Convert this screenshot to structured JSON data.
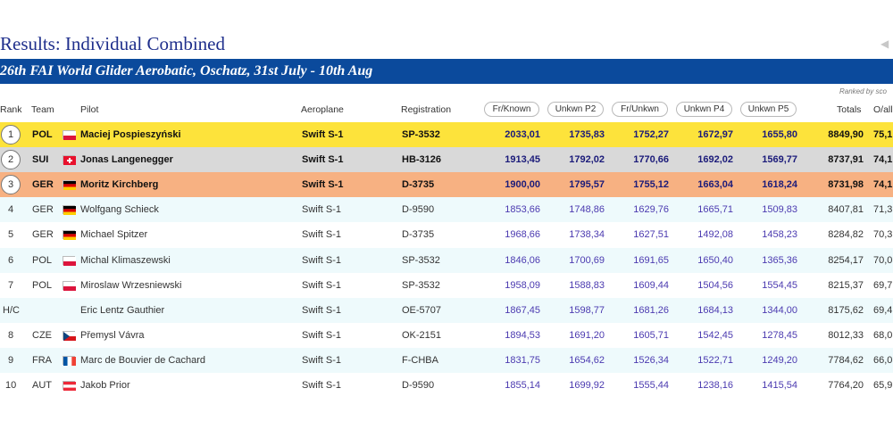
{
  "page": {
    "title": "Results: Individual Combined",
    "banner": "26th FAI World Glider Aerobatic, Oschatz, 31st July - 10th Aug",
    "ranked_by": "Ranked by sco"
  },
  "headers": {
    "rank": "Rank",
    "team": "Team",
    "pilot": "Pilot",
    "aeroplane": "Aeroplane",
    "registration": "Registration",
    "programs": [
      "Fr/Known",
      "Unkwn P2",
      "Fr/Unkwn",
      "Unkwn P4",
      "Unkwn P5"
    ],
    "totals": "Totals",
    "overall": "O/all"
  },
  "colors": {
    "title": "#1f2f8c",
    "banner": "#0b4a9c",
    "gold": "#fde33b",
    "silver": "#d9d9d9",
    "bronze": "#f7b182",
    "alt_row": "#eefafc",
    "program_score": "#4b3ab0"
  },
  "rows": [
    {
      "rank": "1",
      "team": "POL",
      "flag": "pol",
      "pilot": "Maciej Pospieszyński",
      "aeroplane": "Swift S-1",
      "registration": "SP-3532",
      "scores": [
        "2033,01",
        "1735,83",
        "1752,27",
        "1672,97",
        "1655,80"
      ],
      "total": "8849,90",
      "overall": "75,1"
    },
    {
      "rank": "2",
      "team": "SUI",
      "flag": "sui",
      "pilot": "Jonas Langenegger",
      "aeroplane": "Swift S-1",
      "registration": "HB-3126",
      "scores": [
        "1913,45",
        "1792,02",
        "1770,66",
        "1692,02",
        "1569,77"
      ],
      "total": "8737,91",
      "overall": "74,1"
    },
    {
      "rank": "3",
      "team": "GER",
      "flag": "ger",
      "pilot": "Moritz Kirchberg",
      "aeroplane": "Swift S-1",
      "registration": "D-3735",
      "scores": [
        "1900,00",
        "1795,57",
        "1755,12",
        "1663,04",
        "1618,24"
      ],
      "total": "8731,98",
      "overall": "74,1"
    },
    {
      "rank": "4",
      "team": "GER",
      "flag": "ger",
      "pilot": "Wolfgang Schieck",
      "aeroplane": "Swift S-1",
      "registration": "D-9590",
      "scores": [
        "1853,66",
        "1748,86",
        "1629,76",
        "1665,71",
        "1509,83"
      ],
      "total": "8407,81",
      "overall": "71,3"
    },
    {
      "rank": "5",
      "team": "GER",
      "flag": "ger",
      "pilot": "Michael Spitzer",
      "aeroplane": "Swift S-1",
      "registration": "D-3735",
      "scores": [
        "1968,66",
        "1738,34",
        "1627,51",
        "1492,08",
        "1458,23"
      ],
      "total": "8284,82",
      "overall": "70,3"
    },
    {
      "rank": "6",
      "team": "POL",
      "flag": "pol",
      "pilot": "Michal Klimaszewski",
      "aeroplane": "Swift S-1",
      "registration": "SP-3532",
      "scores": [
        "1846,06",
        "1700,69",
        "1691,65",
        "1650,40",
        "1365,36"
      ],
      "total": "8254,17",
      "overall": "70,0"
    },
    {
      "rank": "7",
      "team": "POL",
      "flag": "pol",
      "pilot": "Miroslaw Wrzesniewski",
      "aeroplane": "Swift S-1",
      "registration": "SP-3532",
      "scores": [
        "1958,09",
        "1588,83",
        "1609,44",
        "1504,56",
        "1554,45"
      ],
      "total": "8215,37",
      "overall": "69,7"
    },
    {
      "rank": "H/C",
      "team": "",
      "flag": "",
      "pilot": "Eric Lentz Gauthier",
      "aeroplane": "Swift S-1",
      "registration": "OE-5707",
      "scores": [
        "1867,45",
        "1598,77",
        "1681,26",
        "1684,13",
        "1344,00"
      ],
      "total": "8175,62",
      "overall": "69,4"
    },
    {
      "rank": "8",
      "team": "CZE",
      "flag": "cze",
      "pilot": "Přemysl Vávra",
      "aeroplane": "Swift S-1",
      "registration": "OK-2151",
      "scores": [
        "1894,53",
        "1691,20",
        "1605,71",
        "1542,45",
        "1278,45"
      ],
      "total": "8012,33",
      "overall": "68,0"
    },
    {
      "rank": "9",
      "team": "FRA",
      "flag": "fra",
      "pilot": "Marc de Bouvier de Cachard",
      "aeroplane": "Swift S-1",
      "registration": "F-CHBA",
      "scores": [
        "1831,75",
        "1654,62",
        "1526,34",
        "1522,71",
        "1249,20"
      ],
      "total": "7784,62",
      "overall": "66,0"
    },
    {
      "rank": "10",
      "team": "AUT",
      "flag": "aut",
      "pilot": "Jakob Prior",
      "aeroplane": "Swift S-1",
      "registration": "D-9590",
      "scores": [
        "1855,14",
        "1699,92",
        "1555,44",
        "1238,16",
        "1415,54"
      ],
      "total": "7764,20",
      "overall": "65,9"
    }
  ]
}
